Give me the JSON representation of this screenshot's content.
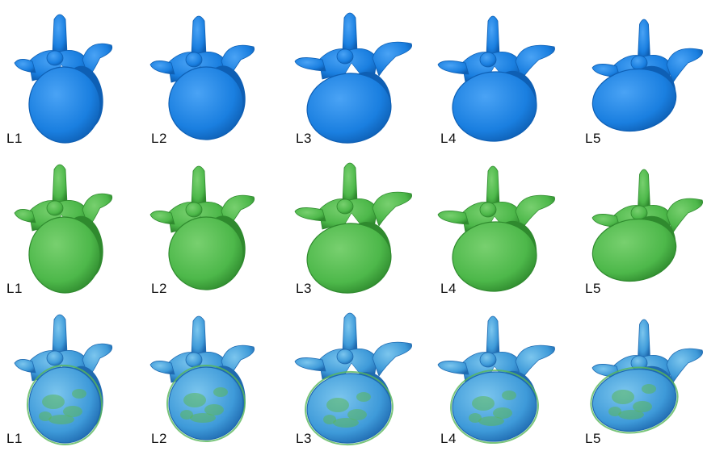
{
  "rows": [
    {
      "name": "blue-row",
      "fill": "#1a7fe0",
      "shade": "#0e5fb4",
      "highlight": "#4aa3f5",
      "labels": [
        "L1",
        "L2",
        "L3",
        "L4",
        "L5"
      ]
    },
    {
      "name": "green-row",
      "fill": "#4db84a",
      "shade": "#2f8a2e",
      "highlight": "#78d06f",
      "labels": [
        "L1",
        "L2",
        "L3",
        "L4",
        "L5"
      ]
    },
    {
      "name": "overlay-row",
      "fill": "#3e9ad9",
      "shade": "#1f6ab0",
      "highlight": "#7cc6ee",
      "accent": "#59b65a",
      "labels": [
        "L1",
        "L2",
        "L3",
        "L4",
        "L5"
      ]
    }
  ]
}
